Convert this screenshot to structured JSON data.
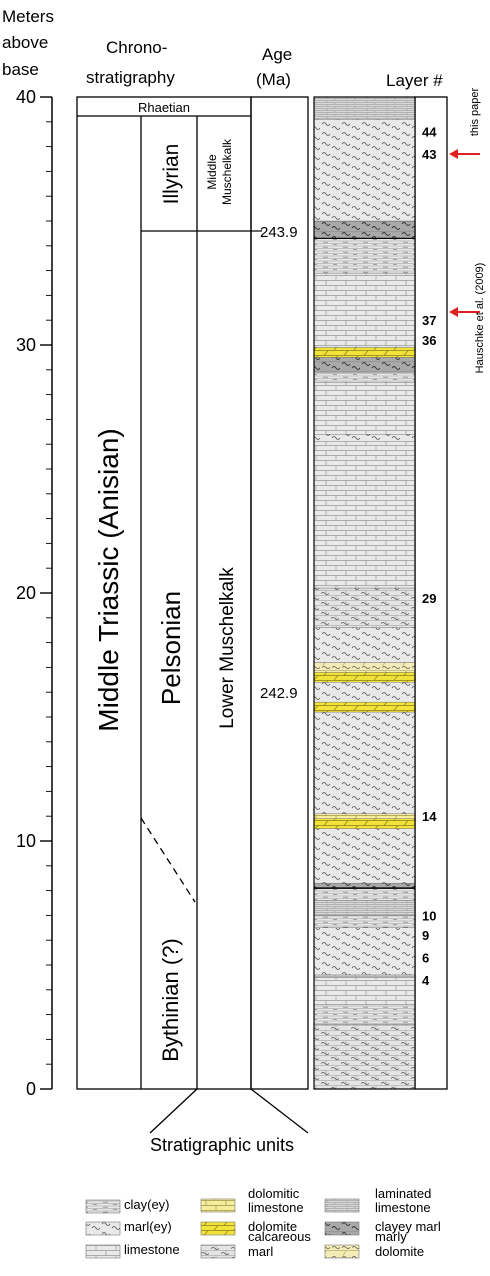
{
  "header": {
    "meters_line1": "Meters",
    "meters_line2": "above",
    "meters_line3": "base",
    "chrono_line1": "Chrono-",
    "chrono_line2": "stratigraphy",
    "age_line1": "Age",
    "age_line2": "(Ma)",
    "layer": "Layer #"
  },
  "axis": {
    "ticks": [
      {
        "value": 40,
        "label": "40"
      },
      {
        "value": 30,
        "label": "30"
      },
      {
        "value": 20,
        "label": "20"
      },
      {
        "value": 10,
        "label": "10"
      },
      {
        "value": 0,
        "label": "0"
      }
    ]
  },
  "chrono": {
    "rhaetian": "Rhaetian",
    "middle_triassic": "Middle Triassic (Anisian)",
    "illyrian": "Illyrian",
    "pelsonian": "Pelsonian",
    "bythinian": "Bythinian (?)",
    "middle_muschelkalk_line1": "Middle",
    "middle_muschelkalk_line2": "Muschelkalk",
    "lower_muschelkalk": "Lower Muschelkalk"
  },
  "ages": [
    {
      "label": "243.9",
      "height_m": 34.6
    },
    {
      "label": "242.9",
      "height_m": 16.0
    }
  ],
  "layers": [
    {
      "label": "44",
      "height_m": 38.6
    },
    {
      "label": "43",
      "height_m": 37.7
    },
    {
      "label": "37",
      "height_m": 31.0
    },
    {
      "label": "36",
      "height_m": 30.2
    },
    {
      "label": "29",
      "height_m": 19.8
    },
    {
      "label": "14",
      "height_m": 11.0
    },
    {
      "label": "10",
      "height_m": 7.0
    },
    {
      "label": "9",
      "height_m": 6.2
    },
    {
      "label": "6",
      "height_m": 5.3
    },
    {
      "label": "4",
      "height_m": 4.4
    }
  ],
  "annotations": {
    "this_paper": "this paper",
    "hauschke": "Hauschke et al. (2009)"
  },
  "stratigraphic_units": "Stratigraphic units",
  "legend": [
    {
      "label": "clay(ey)",
      "pattern": "clay"
    },
    {
      "label": "marl(ey)",
      "pattern": "marl"
    },
    {
      "label": "limestone",
      "pattern": "limestone"
    },
    {
      "label": "dolomitic limestone",
      "pattern": "dolomitic-limestone"
    },
    {
      "label": "dolomite",
      "pattern": "dolomite"
    },
    {
      "label": "calcareous marl",
      "pattern": "calcareous-marl"
    },
    {
      "label": "laminated limestone",
      "pattern": "laminated-limestone"
    },
    {
      "label": "clayey marl",
      "pattern": "clayey-marl"
    },
    {
      "label": "marly dolomite",
      "pattern": "marly-dolomite"
    }
  ],
  "colors": {
    "dolomite": "#f2e33a",
    "dolomitic_limestone": "#f5ed9a",
    "marly_dolomite": "#f3ecb8",
    "rock_light": "#e8e8e8",
    "rock_dark": "#a9a9a9",
    "arrow": "#e02020"
  }
}
